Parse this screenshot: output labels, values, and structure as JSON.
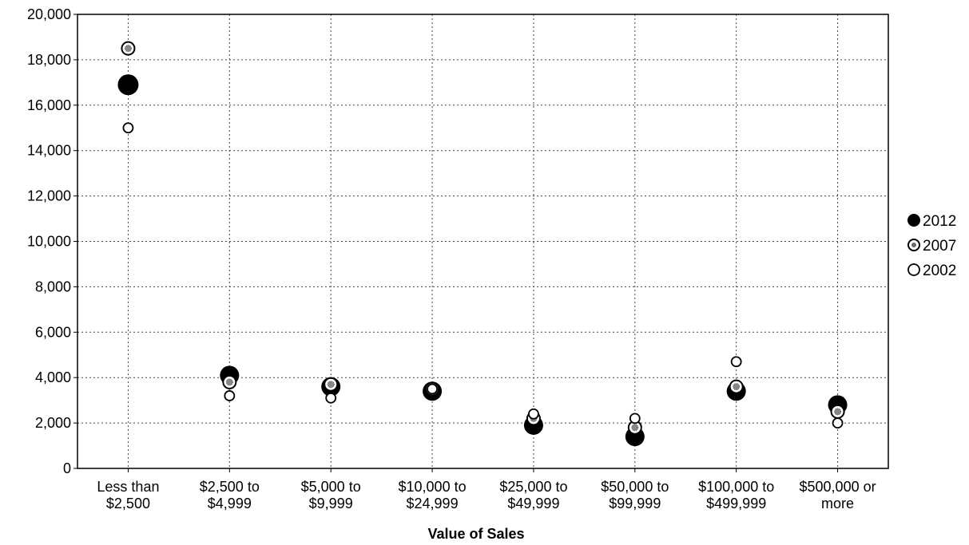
{
  "chart_data": {
    "type": "scatter",
    "title": "",
    "xlabel": "Value of Sales",
    "ylabel": "",
    "ylim": [
      0,
      20000
    ],
    "yticks": [
      0,
      2000,
      4000,
      6000,
      8000,
      10000,
      12000,
      14000,
      16000,
      18000,
      20000
    ],
    "ytick_labels": [
      "0",
      "2,000",
      "4,000",
      "6,000",
      "8,000",
      "10,000",
      "12,000",
      "14,000",
      "16,000",
      "18,000",
      "20,000"
    ],
    "categories": [
      [
        "Less than",
        "$2,500"
      ],
      [
        "$2,500 to",
        "$4,999"
      ],
      [
        "$5,000 to",
        "$9,999"
      ],
      [
        "$10,000 to",
        "$24,999"
      ],
      [
        "$25,000 to",
        "$49,999"
      ],
      [
        "$50,000 to",
        "$99,999"
      ],
      [
        "$100,000 to",
        "$499,999"
      ],
      [
        "$500,000 or",
        "more"
      ]
    ],
    "grid": true,
    "legend_position": "right",
    "series": [
      {
        "name": "2012",
        "marker": "filled",
        "color": "#000000",
        "values": [
          16900,
          4100,
          3600,
          3400,
          1900,
          1400,
          3400,
          2800
        ]
      },
      {
        "name": "2007",
        "marker": "dotted-ring",
        "color": "#555555",
        "values": [
          18500,
          3800,
          3700,
          3500,
          2200,
          1800,
          3600,
          2500
        ]
      },
      {
        "name": "2002",
        "marker": "open",
        "color": "#000000",
        "values": [
          15000,
          3200,
          3100,
          3500,
          2400,
          2200,
          4700,
          2000
        ]
      }
    ]
  }
}
